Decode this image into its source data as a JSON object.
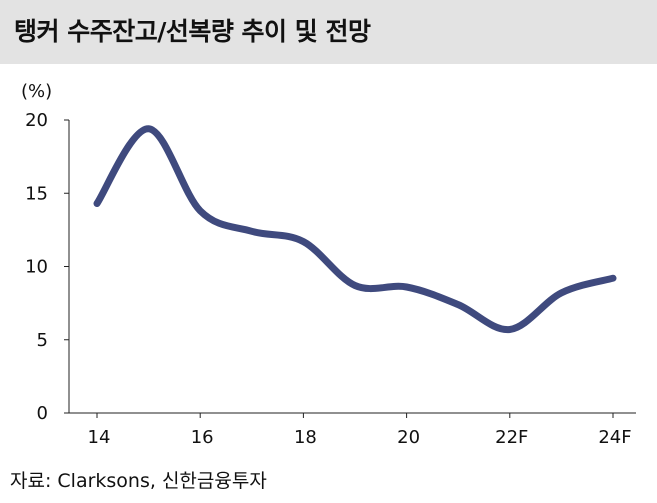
{
  "title": "탱커 수주잔고/선복량 추이 및 전망",
  "source": "자료: Clarksons, 신한금융투자",
  "chart_data": {
    "type": "line",
    "ylabel": "(%)",
    "ylim": [
      0,
      20
    ],
    "yticks": [
      "0",
      "5",
      "10",
      "15",
      "20"
    ],
    "xlim": [
      14,
      24.6
    ],
    "xticks": [
      {
        "value": 14,
        "label": "14"
      },
      {
        "value": 16,
        "label": "16"
      },
      {
        "value": 18,
        "label": "18"
      },
      {
        "value": 20,
        "label": "20"
      },
      {
        "value": 22,
        "label": "22F"
      },
      {
        "value": 24,
        "label": "24F"
      }
    ],
    "series": [
      {
        "color": "#3f4a7e",
        "x": [
          14.0,
          15.0,
          16.0,
          17.0,
          18.0,
          19.0,
          20.0,
          21.0,
          22.0,
          23.0,
          24.0
        ],
        "y": [
          14.3,
          19.4,
          13.8,
          12.4,
          11.7,
          8.7,
          8.6,
          7.4,
          5.7,
          8.2,
          9.2
        ]
      }
    ],
    "grid": false,
    "legend": "none"
  }
}
